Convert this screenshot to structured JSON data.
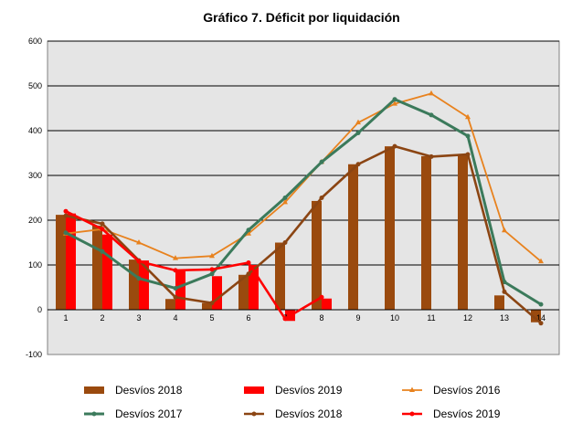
{
  "chart_data": {
    "type": "bar+line",
    "title": "Gráfico 7. Déficit por liquidación",
    "xlabel": "",
    "ylabel": "",
    "categories": [
      "1",
      "2",
      "3",
      "4",
      "5",
      "6",
      "7",
      "8",
      "9",
      "10",
      "11",
      "12",
      "13",
      "14"
    ],
    "ylim": [
      -100,
      600
    ],
    "yticks": [
      "-100",
      "0",
      "100",
      "200",
      "300",
      "400",
      "500",
      "600"
    ],
    "grid": true,
    "legend_position": "bottom",
    "bar_series": [
      {
        "name": "Desvíos 2018",
        "color": "#9a4a0e",
        "values": [
          212,
          188,
          112,
          24,
          15,
          78,
          150,
          243,
          325,
          365,
          343,
          348,
          32,
          -28
        ]
      },
      {
        "name": "Desvíos 2019",
        "color": "#ff0000",
        "values": [
          215,
          168,
          110,
          88,
          75,
          100,
          -25,
          25,
          null,
          null,
          null,
          null,
          null,
          null
        ]
      }
    ],
    "line_series": [
      {
        "name": "Desvíos 2016",
        "color": "#e8821e",
        "values": [
          170,
          180,
          150,
          115,
          120,
          170,
          240,
          330,
          418,
          460,
          483,
          430,
          177,
          108
        ]
      },
      {
        "name": "Desvíos 2017",
        "color": "#3b7a5b",
        "values": [
          172,
          130,
          70,
          48,
          80,
          178,
          250,
          330,
          395,
          470,
          435,
          388,
          62,
          12
        ]
      },
      {
        "name": "Desvíos 2018",
        "color": "#8b4513",
        "values": [
          210,
          192,
          110,
          28,
          15,
          80,
          150,
          250,
          325,
          365,
          342,
          347,
          40,
          -30
        ]
      },
      {
        "name": "Desvíos 2019",
        "color": "#ff0000",
        "values": [
          220,
          180,
          108,
          88,
          90,
          105,
          -20,
          28,
          null,
          null,
          null,
          null,
          null,
          null
        ]
      }
    ],
    "colors": {
      "plot_background": "#e5e5e5",
      "gridline": "#000000"
    }
  }
}
